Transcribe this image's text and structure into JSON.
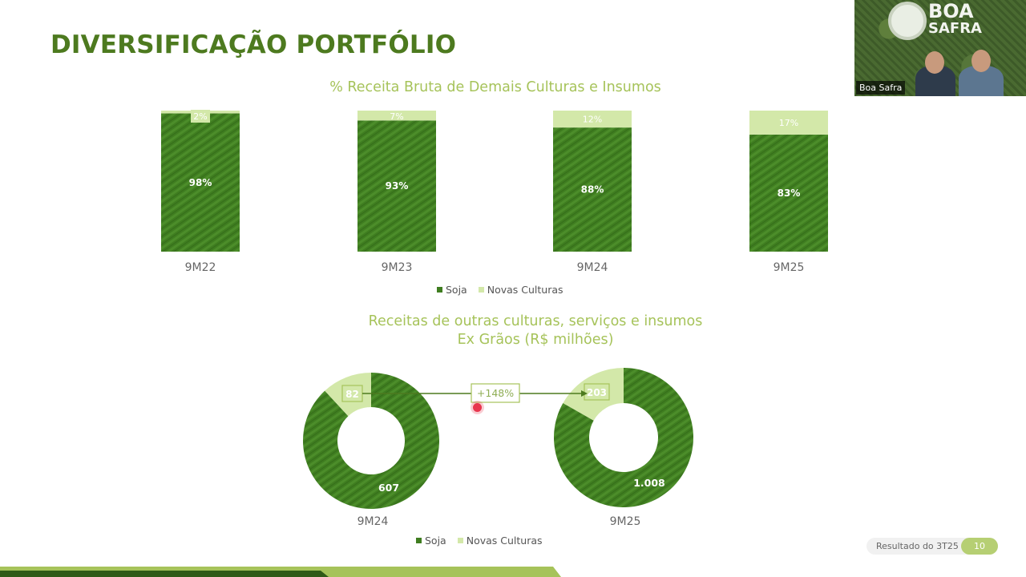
{
  "page": {
    "title": "DIVERSIFICAÇÃO PORTFÓLIO",
    "footer_label": "Resultado do  3T25",
    "page_number": "10"
  },
  "video": {
    "logo_line1": "BOA",
    "logo_line2": "SAFRA",
    "label": "Boa Safra"
  },
  "colors": {
    "dark_green": "#3f7d20",
    "light_green": "#d3e8a9",
    "title_green": "#4d7a1f",
    "subtitle_green": "#a6c35a"
  },
  "chart_data": [
    {
      "type": "bar",
      "stacked": true,
      "title": "% Receita Bruta de Demais Culturas e Insumos",
      "categories": [
        "9M22",
        "9M23",
        "9M24",
        "9M25"
      ],
      "series": [
        {
          "name": "Soja",
          "values": [
            98,
            93,
            88,
            83
          ],
          "labels": [
            "98%",
            "93%",
            "88%",
            "83%"
          ]
        },
        {
          "name": "Novas Culturas",
          "values": [
            2,
            7,
            12,
            17
          ],
          "labels": [
            "2%",
            "7%",
            "12%",
            "17%"
          ]
        }
      ],
      "ylim": [
        0,
        100
      ],
      "legend": "bottom",
      "grid": false
    },
    {
      "type": "pie",
      "donut": true,
      "title_line1": "Receitas de outras culturas, serviços e insumos",
      "title_line2": "Ex Grãos (R$ milhões)",
      "categories": [
        "9M24",
        "9M25"
      ],
      "series": [
        {
          "name": "Soja",
          "values": [
            607,
            1008
          ],
          "labels": [
            "607",
            "1.008"
          ]
        },
        {
          "name": "Novas Culturas",
          "values": [
            82,
            203
          ],
          "labels": [
            "82",
            "203"
          ]
        }
      ],
      "annotation": "+148%",
      "legend": "bottom"
    }
  ]
}
